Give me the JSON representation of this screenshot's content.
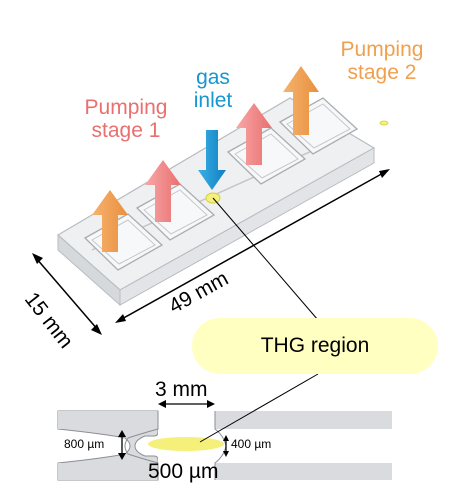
{
  "labels": {
    "pumping_stage_1": [
      "Pumping",
      "stage 1"
    ],
    "pumping_stage_2": [
      "Pumping",
      "stage 2"
    ],
    "gas_inlet": [
      "gas",
      "inlet"
    ],
    "width_dim": "15 mm",
    "length_dim": "49 mm",
    "thg_region": "THG region",
    "gap_dim": "3 mm",
    "left_thickness": "800 µm",
    "right_thickness": "400 µm",
    "channel_length": "500 µm"
  },
  "colors": {
    "pumping_stage_1": "#e8706f",
    "pumping_stage_2": "#f0a04e",
    "gas_inlet": "#1796cf",
    "thg_region_fill": "#ffffc2",
    "focus_spot": "#f5f07a"
  }
}
